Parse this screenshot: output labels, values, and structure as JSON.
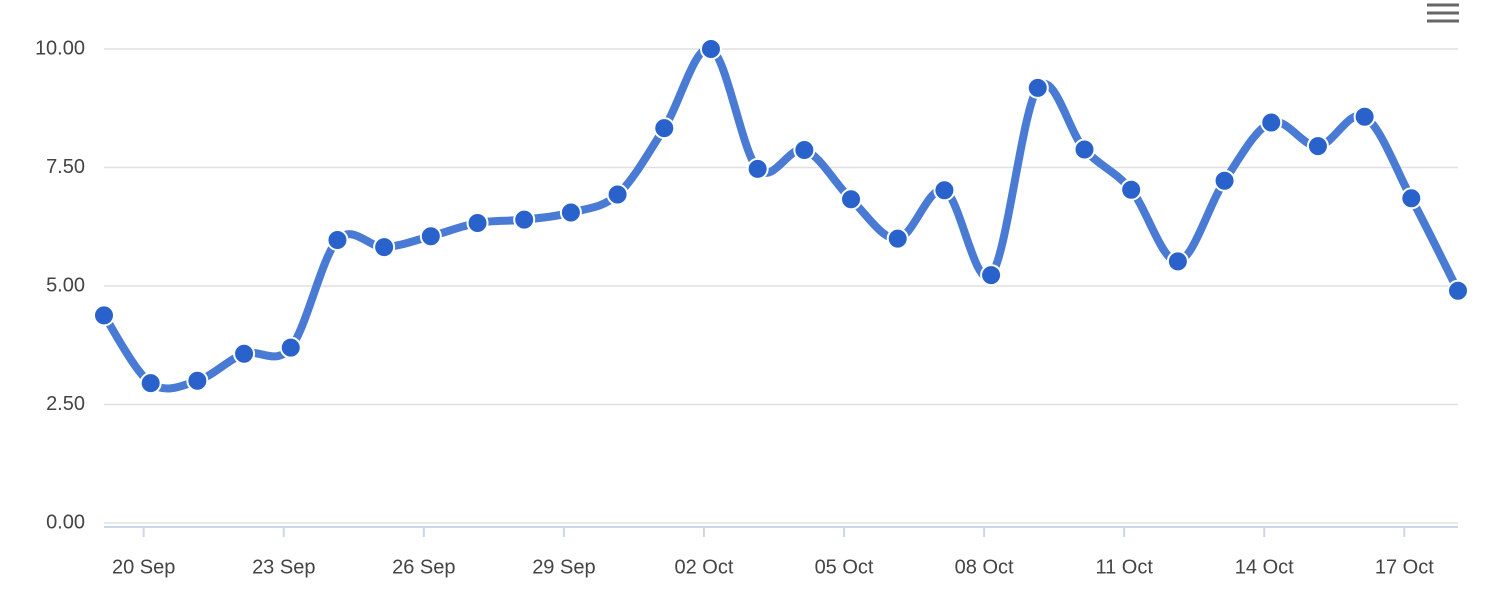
{
  "chart_data": {
    "type": "line",
    "x": [
      "19 Sep",
      "20 Sep",
      "21 Sep",
      "22 Sep",
      "23 Sep",
      "24 Sep",
      "25 Sep",
      "26 Sep",
      "27 Sep",
      "28 Sep",
      "29 Sep",
      "30 Sep",
      "01 Oct",
      "02 Oct",
      "03 Oct",
      "04 Oct",
      "05 Oct",
      "06 Oct",
      "07 Oct",
      "08 Oct",
      "09 Oct",
      "10 Oct",
      "11 Oct",
      "12 Oct",
      "13 Oct",
      "14 Oct",
      "15 Oct",
      "16 Oct",
      "17 Oct",
      "18 Oct"
    ],
    "values": [
      4.38,
      2.95,
      3.0,
      3.57,
      3.7,
      5.97,
      5.82,
      6.05,
      6.33,
      6.4,
      6.55,
      6.93,
      8.33,
      10.0,
      7.47,
      7.87,
      6.83,
      6.0,
      7.02,
      5.23,
      9.18,
      7.88,
      7.03,
      5.52,
      7.22,
      8.45,
      7.95,
      8.57,
      6.85,
      4.9
    ],
    "color": "#4a7bd4",
    "marker_color": "#2a62cc",
    "xticks": [
      "20 Sep",
      "23 Sep",
      "26 Sep",
      "29 Sep",
      "02 Oct",
      "05 Oct",
      "08 Oct",
      "11 Oct",
      "14 Oct",
      "17 Oct"
    ],
    "ylim": [
      0,
      10
    ],
    "yticks": [
      {
        "value": 0,
        "label": "0.00"
      },
      {
        "value": 2.5,
        "label": "2.50"
      },
      {
        "value": 5,
        "label": "5.00"
      },
      {
        "value": 7.5,
        "label": "7.50"
      },
      {
        "value": 10,
        "label": "10.00"
      }
    ],
    "grid": true
  }
}
